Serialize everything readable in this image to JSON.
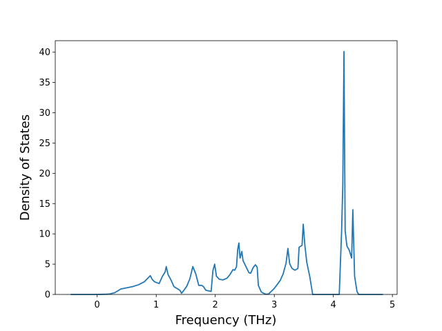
{
  "chart_data": {
    "type": "line",
    "x_label": "Frequency (THz)",
    "y_label": "Density of States",
    "color": "#1f77b4",
    "x": [
      -0.45,
      0,
      0.2,
      0.3,
      0.35,
      0.4,
      0.5,
      0.6,
      0.7,
      0.8,
      0.85,
      0.9,
      0.93,
      0.97,
      1.05,
      1.1,
      1.15,
      1.17,
      1.2,
      1.25,
      1.3,
      1.35,
      1.4,
      1.43,
      1.47,
      1.52,
      1.57,
      1.62,
      1.67,
      1.72,
      1.77,
      1.8,
      1.84,
      1.93,
      1.96,
      1.99,
      2.02,
      2.07,
      2.13,
      2.2,
      2.25,
      2.3,
      2.33,
      2.36,
      2.38,
      2.4,
      2.42,
      2.45,
      2.47,
      2.52,
      2.57,
      2.6,
      2.64,
      2.68,
      2.71,
      2.73,
      2.78,
      2.85,
      2.9,
      3.0,
      3.1,
      3.15,
      3.2,
      3.23,
      3.26,
      3.3,
      3.35,
      3.4,
      3.42,
      3.47,
      3.49,
      3.52,
      3.55,
      3.6,
      3.65,
      4.1,
      4.14,
      4.16,
      4.18,
      4.2,
      4.23,
      4.27,
      4.31,
      4.33,
      4.36,
      4.4,
      4.43,
      4.84
    ],
    "values": [
      0,
      0,
      0.05,
      0.3,
      0.6,
      0.9,
      1.1,
      1.3,
      1.6,
      2.1,
      2.6,
      3.1,
      2.5,
      2.1,
      1.8,
      2.9,
      3.7,
      4.6,
      3.3,
      2.4,
      1.3,
      1.0,
      0.7,
      0.2,
      0.7,
      1.4,
      2.6,
      4.6,
      3.4,
      1.5,
      1.5,
      1.3,
      0.7,
      0.5,
      3.9,
      5.0,
      3.0,
      2.5,
      2.4,
      2.7,
      3.3,
      4.1,
      4.0,
      4.6,
      7.4,
      8.5,
      6.0,
      7.1,
      5.6,
      4.6,
      3.6,
      3.5,
      4.4,
      4.9,
      4.5,
      1.5,
      0.4,
      0.05,
      0.05,
      1.0,
      2.3,
      3.4,
      5.2,
      7.6,
      5.1,
      4.3,
      4.0,
      4.3,
      7.8,
      8.1,
      11.6,
      7.9,
      5.3,
      3.0,
      0,
      0,
      10.5,
      18,
      40.1,
      10.5,
      8.0,
      7.3,
      6.0,
      14.0,
      3.0,
      0.5,
      0,
      0
    ],
    "xlim": [
      -0.71,
      5.08
    ],
    "ylim": [
      0,
      41.9
    ],
    "xticks": [
      0,
      1,
      2,
      3,
      4,
      5
    ],
    "yticks": [
      0,
      5,
      10,
      15,
      20,
      25,
      30,
      35,
      40
    ]
  }
}
